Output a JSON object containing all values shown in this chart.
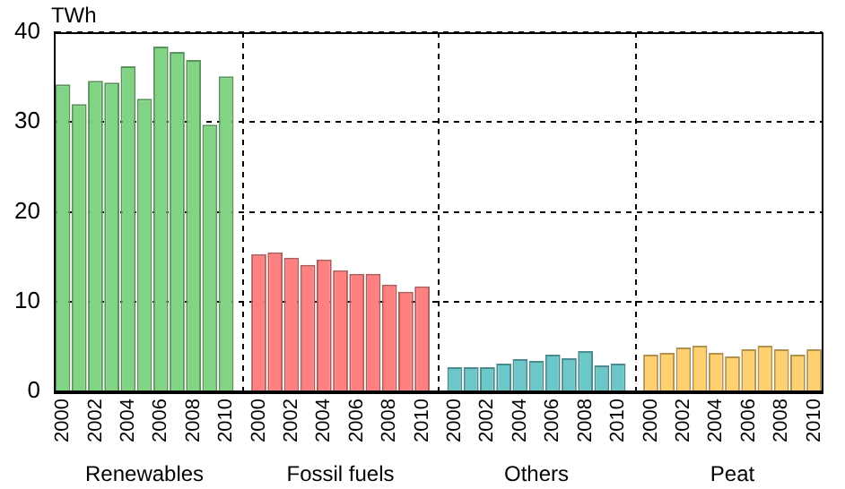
{
  "chart_data": {
    "type": "bar",
    "ylabel": "TWh",
    "ylim": [
      0,
      40
    ],
    "yticks": [
      0,
      10,
      20,
      30,
      40
    ],
    "grid": true,
    "legend": false,
    "annotations": [
      "Renewables",
      "Fossil fuels",
      "Others",
      "Peat"
    ],
    "categories": [
      "2000",
      null,
      "2002",
      null,
      "2004",
      null,
      "2006",
      null,
      "2008",
      null,
      "2010",
      null,
      "2000",
      null,
      "2002",
      null,
      "2004",
      null,
      "2006",
      null,
      "2008",
      null,
      "2010",
      null,
      "2000",
      null,
      "2002",
      null,
      "2004",
      null,
      "2006",
      null,
      "2008",
      null,
      "2010",
      null,
      "2000",
      null,
      "2002",
      null,
      "2004",
      null,
      "2006",
      null,
      "2008",
      null,
      "2010"
    ],
    "series": [
      {
        "color": "#80d484",
        "values": [
          34.2,
          32.0,
          34.6,
          34.4,
          36.2,
          32.6,
          38.4,
          37.8,
          36.9,
          29.7,
          35.1,
          null,
          null,
          null,
          null,
          null,
          null,
          null,
          null,
          null,
          null,
          null,
          null,
          null,
          null,
          null,
          null,
          null,
          null,
          null,
          null,
          null,
          null,
          null,
          null,
          null,
          null,
          null,
          null,
          null,
          null,
          null,
          null,
          null,
          null,
          null,
          null
        ]
      },
      {
        "color": "#ff8080",
        "values": [
          null,
          null,
          null,
          null,
          null,
          null,
          null,
          null,
          null,
          null,
          null,
          null,
          15.3,
          15.5,
          14.9,
          14.1,
          14.7,
          13.5,
          13.1,
          13.1,
          11.9,
          11.1,
          11.7,
          null,
          null,
          null,
          null,
          null,
          null,
          null,
          null,
          null,
          null,
          null,
          null,
          null,
          null,
          null,
          null,
          null,
          null,
          null,
          null,
          null,
          null,
          null,
          null
        ]
      },
      {
        "color": "#6cc8c8",
        "values": [
          null,
          null,
          null,
          null,
          null,
          null,
          null,
          null,
          null,
          null,
          null,
          null,
          null,
          null,
          null,
          null,
          null,
          null,
          null,
          null,
          null,
          null,
          null,
          null,
          2.7,
          2.7,
          2.7,
          3.1,
          3.6,
          3.4,
          4.1,
          3.7,
          4.5,
          2.9,
          3.1,
          null,
          null,
          null,
          null,
          null,
          null,
          null,
          null,
          null,
          null,
          null,
          null
        ]
      },
      {
        "color": "#ffd070",
        "values": [
          null,
          null,
          null,
          null,
          null,
          null,
          null,
          null,
          null,
          null,
          null,
          null,
          null,
          null,
          null,
          null,
          null,
          null,
          null,
          null,
          null,
          null,
          null,
          null,
          null,
          null,
          null,
          null,
          null,
          null,
          null,
          null,
          null,
          null,
          null,
          null,
          4.1,
          4.3,
          4.9,
          5.1,
          4.3,
          3.9,
          4.7,
          5.1,
          4.7,
          4.1,
          4.7
        ]
      }
    ]
  }
}
